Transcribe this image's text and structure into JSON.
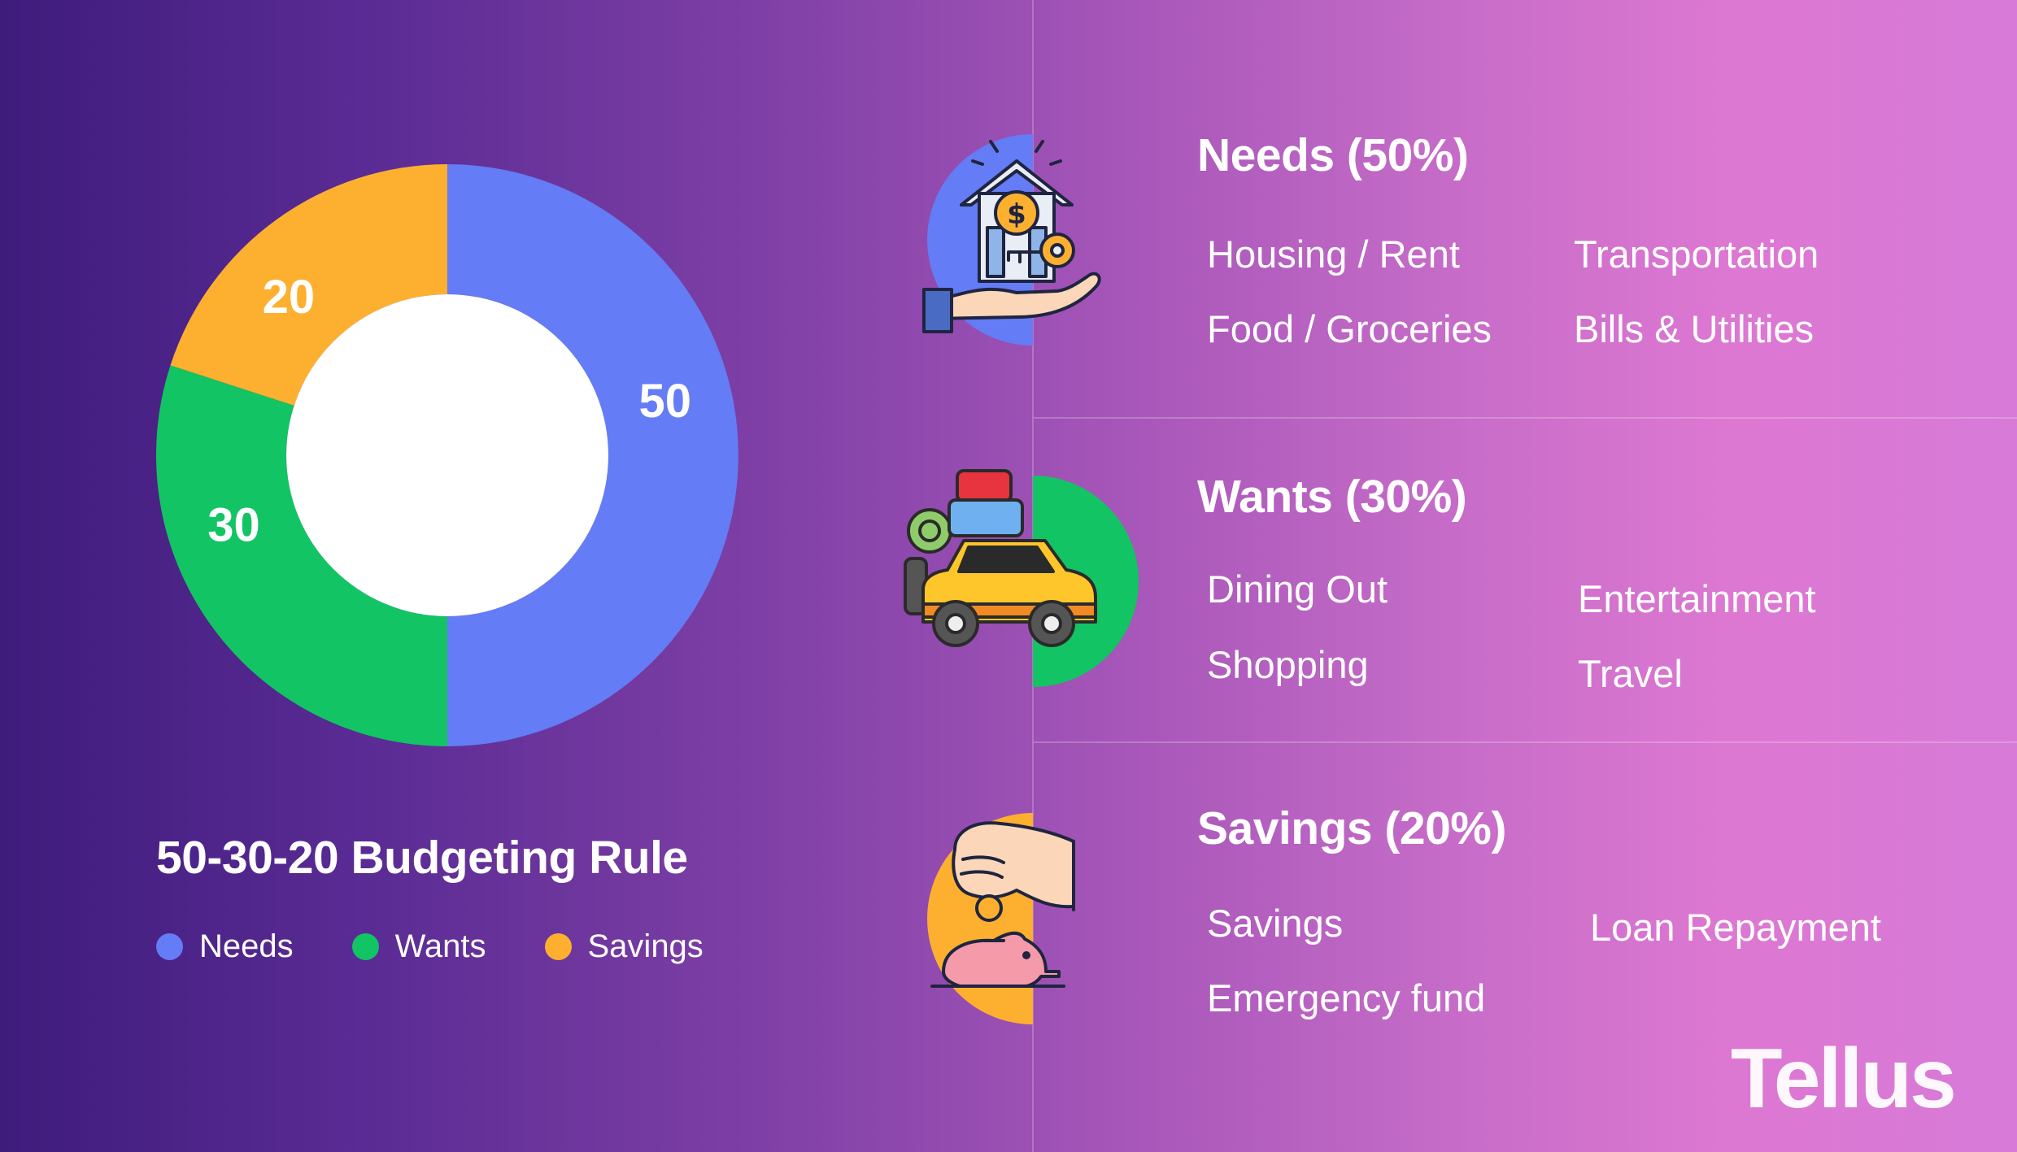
{
  "chart_data": {
    "type": "pie",
    "categories": [
      "Needs",
      "Wants",
      "Savings"
    ],
    "values": [
      50,
      30,
      20
    ],
    "data_labels": [
      "50",
      "30",
      "20"
    ],
    "colors": [
      "#647cf5",
      "#12c463",
      "#fdb02f"
    ],
    "donut": true,
    "title": "50-30-20 Budgeting Rule",
    "legend": {
      "placement": "bottom-left",
      "entries": [
        "Needs",
        "Wants",
        "Savings"
      ]
    }
  },
  "sections": [
    {
      "title": "Needs (50%)",
      "icon": "house-key-hand-icon",
      "color": "#647cf5",
      "items": [
        "Housing / Rent",
        "Transportation",
        "Food / Groceries",
        "Bills & Utilities"
      ]
    },
    {
      "title": "Wants (30%)",
      "icon": "car-luggage-icon",
      "color": "#12c463",
      "items": [
        "Dining Out",
        "Entertainment",
        "Shopping",
        "Travel"
      ]
    },
    {
      "title": "Savings (20%)",
      "icon": "piggy-bank-coin-icon",
      "color": "#fdb02f",
      "items": [
        "Savings",
        "Loan Repayment",
        "Emergency fund"
      ]
    }
  ],
  "brand": {
    "logo_text": "Tellus"
  }
}
